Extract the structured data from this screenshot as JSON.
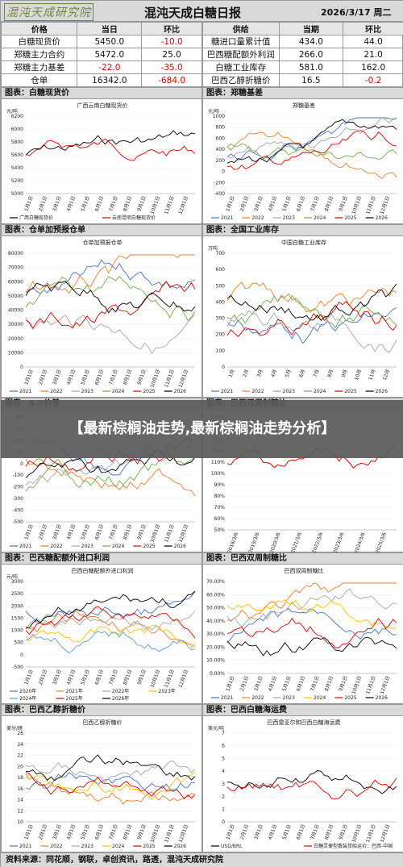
{
  "header": {
    "logo_text": "混沌天成研究院",
    "title": "混沌天成白糖日报",
    "date": "2026/3/17 周二"
  },
  "left_table": {
    "cols": [
      "价格",
      "当日",
      "环比"
    ],
    "rows": [
      {
        "name": "白糖现货价",
        "value": "5450.0",
        "change": "-10.0",
        "neg": true
      },
      {
        "name": "郑糖主力合约",
        "value": "5472.0",
        "change": "25.0",
        "neg": false
      },
      {
        "name": "郑糖主力基差",
        "value": "-22.0",
        "change": "-35.0",
        "neg": true,
        "vneg": true
      },
      {
        "name": "仓单",
        "value": "16342.0",
        "change": "-684.0",
        "neg": true
      }
    ]
  },
  "right_table": {
    "cols": [
      "供给",
      "当期",
      "环比"
    ],
    "rows": [
      {
        "name": "糖进口量累计值",
        "value": "434.0",
        "change": "44.0",
        "neg": false
      },
      {
        "name": "巴西糖配额外利润",
        "value": "266.0",
        "change": "21.0",
        "neg": false
      },
      {
        "name": "白糖工业库存",
        "value": "581.0",
        "change": "162.0",
        "neg": false
      },
      {
        "name": "巴西乙醇折糖价",
        "value": "16.5",
        "change": "-0.2",
        "neg": true
      }
    ]
  },
  "panels": [
    {
      "id": "p1",
      "head": "图表：白糖现货价",
      "title": "广西云南白糖现货价",
      "unit": "元/吨",
      "legend": [
        "广西白糖现货价",
        "云南昆明白糖现货价"
      ],
      "legend_colors": [
        "#000000",
        "#e00000"
      ],
      "yticks": [
        "6200",
        "6000",
        "5800",
        "5600",
        "5400",
        "5200",
        "5000"
      ]
    },
    {
      "id": "p2",
      "head": "图表：郑糖基差",
      "title": "郑糖基差",
      "unit": "元/吨",
      "legend": [
        "2021",
        "2022",
        "2023",
        "2024",
        "2025",
        "2026"
      ],
      "legend_colors": [
        "#4472c4",
        "#ed7d31",
        "#a5a5a5",
        "#70ad47",
        "#e00000",
        "#000000"
      ],
      "yticks": [
        "1000",
        "800",
        "600",
        "400",
        "200",
        "0",
        "-200",
        "-400"
      ]
    },
    {
      "id": "p3",
      "head": "图表：仓单加预报仓单",
      "title": "仓单加预报仓单",
      "unit": "",
      "legend": [
        "2021",
        "2022",
        "2023",
        "2024",
        "2025",
        "2026"
      ],
      "legend_colors": [
        "#4472c4",
        "#ed7d31",
        "#a5a5a5",
        "#70ad47",
        "#e00000",
        "#000000"
      ],
      "yticks": [
        "80000",
        "70000",
        "60000",
        "50000",
        "40000",
        "30000",
        "20000",
        "10000",
        "0"
      ]
    },
    {
      "id": "p4",
      "head": "图表：全国工业库存",
      "title": "中国白糖工业库存",
      "unit": "万吨",
      "legend": [
        "2021",
        "2022",
        "2023",
        "2024",
        "2025",
        "2026"
      ],
      "legend_colors": [
        "#4472c4",
        "#ed7d31",
        "#a5a5a5",
        "#70ad47",
        "#e00000",
        "#000000"
      ],
      "yticks": [
        "700",
        "600",
        "500",
        "400",
        "300",
        "200",
        "100",
        "0"
      ],
      "xlabels": [
        "1月",
        "2月",
        "3月",
        "4月",
        "5月",
        "6月",
        "7月",
        "8月",
        "9月",
        "10月",
        "11月",
        "12月"
      ]
    },
    {
      "id": "p5",
      "head": "图表：5-9价差",
      "title": "",
      "unit": "",
      "legend": [
        "2021",
        "2022",
        "2023",
        "2024",
        "2025",
        "2026"
      ],
      "legend_colors": [
        "#4472c4",
        "#ed7d31",
        "#a5a5a5",
        "#70ad47",
        "#e00000",
        "#000000"
      ],
      "yticks": [
        "400",
        "300",
        "200",
        "100",
        "0",
        "-100",
        "-200",
        "-300",
        "-400",
        "-500"
      ]
    },
    {
      "id": "p6",
      "head": "图表：巴西双周制糖比",
      "title": "",
      "unit": "",
      "legend": [],
      "legend_colors": [],
      "yticks": [
        "150%",
        "140%",
        "130%",
        "120%",
        "110%",
        "100%",
        "90%",
        "80%",
        "70%",
        "60%",
        "50%"
      ],
      "xlabels": [
        "2018/3/6",
        "2019/3/6",
        "2020/3/6",
        "2021/3/6",
        "2022/3/6",
        "2023/3/6",
        "2024/3/6",
        "2025/3/6"
      ]
    },
    {
      "id": "p7",
      "head": "图表：巴西糖配额外进口利润",
      "title": "巴西白糖配额外进口利润",
      "unit": "元/吨",
      "legend": [
        "2020年",
        "2021年",
        "2022年",
        "2023年",
        "2024年",
        "2025年",
        "2026年"
      ],
      "legend_colors": [
        "#4472c4",
        "#ed7d31",
        "#a5a5a5",
        "#ffc000",
        "#5b9bd5",
        "#e00000",
        "#000000"
      ],
      "yticks": [
        "3000",
        "2500",
        "2000",
        "1500",
        "1000",
        "500",
        "0",
        "-500"
      ]
    },
    {
      "id": "p8",
      "head": "图表：巴西双周制糖比",
      "title": "巴西双周制糖比",
      "unit": "",
      "legend": [
        "2021",
        "2022",
        "2023",
        "2024",
        "2025",
        "2026"
      ],
      "legend_colors": [
        "#4472c4",
        "#ed7d31",
        "#a5a5a5",
        "#ffc000",
        "#e00000",
        "#000000"
      ],
      "yticks": [
        "70.00%",
        "60.00%",
        "50.00%",
        "40.00%",
        "30.00%",
        "20.00%",
        "10.00%",
        "0.00%"
      ]
    },
    {
      "id": "p9",
      "head": "图表：巴西乙醇折糖价",
      "title": "巴西乙醇折糖价",
      "unit": "美分/磅",
      "legend": [
        "2021",
        "2022",
        "2023",
        "2024",
        "2025",
        "2026"
      ],
      "legend_colors": [
        "#4472c4",
        "#ed7d31",
        "#a5a5a5",
        "#ffc000",
        "#e00000",
        "#000000"
      ],
      "yticks": [
        "26",
        "24",
        "22",
        "20",
        "18",
        "16",
        "14",
        "12",
        "10"
      ]
    },
    {
      "id": "p10",
      "head": "图表：巴西白糖海运费",
      "title": "巴西雷亚尔和巴西白糖海运费",
      "unit": "美元/吨",
      "legend": [
        "USD/BRL",
        "白糖灵便型散装货船运价：巴西-中国"
      ],
      "legend_colors": [
        "#000000",
        "#e00000"
      ],
      "yticks": [
        "7",
        "6",
        "5",
        "4",
        "3",
        "2",
        "1",
        "0"
      ]
    }
  ],
  "overlay": {
    "text": "【最新棕榈油走势,最新棕榈油走势分析】"
  },
  "footer": {
    "text": "资料来源：同花顺，钢联，卓创资讯，路透，混沌天成研究院"
  }
}
